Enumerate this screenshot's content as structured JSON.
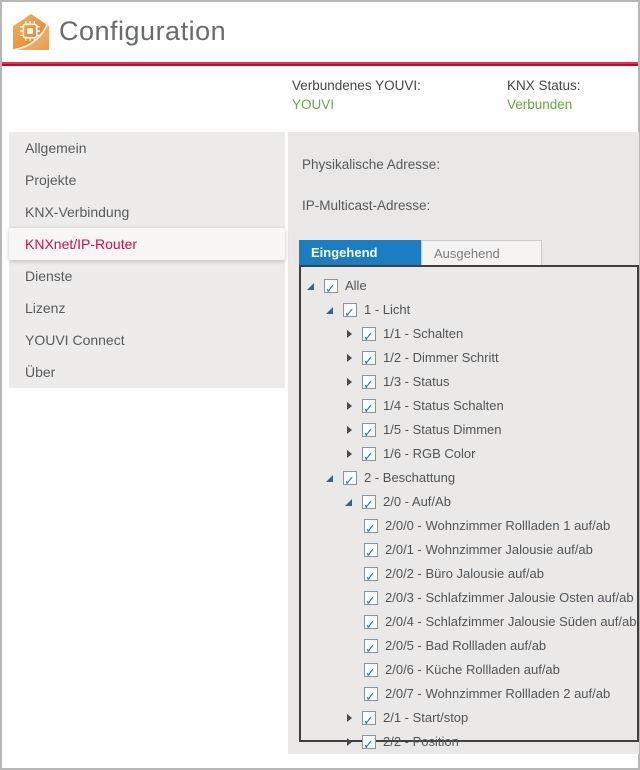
{
  "header": {
    "title": "Configuration",
    "logo_icon": "youvi-house-chip-logo"
  },
  "sidebar": {
    "items": [
      {
        "label": "Allgemein",
        "selected": false
      },
      {
        "label": "Projekte",
        "selected": false
      },
      {
        "label": "KNX-Verbindung",
        "selected": false
      },
      {
        "label": "KNXnet/IP-Router",
        "selected": true
      },
      {
        "label": "Dienste",
        "selected": false
      },
      {
        "label": "Lizenz",
        "selected": false
      },
      {
        "label": "YOUVI Connect",
        "selected": false
      },
      {
        "label": "Über",
        "selected": false
      }
    ]
  },
  "status": {
    "connected_youvi_label": "Verbundenes YOUVI:",
    "connected_youvi_value": "YOUVI",
    "knx_status_label": "KNX Status:",
    "knx_status_value": "Verbunden"
  },
  "fields": {
    "physical_address_label": "Physikalische Adresse:",
    "ip_multicast_label": "IP-Multicast-Adresse:"
  },
  "tabs": [
    {
      "label": "Eingehend",
      "active": true
    },
    {
      "label": "Ausgehend",
      "active": false
    }
  ],
  "tree": {
    "items": [
      {
        "label": "Alle",
        "level": 0,
        "state": "expanded",
        "checked": true
      },
      {
        "label": "1 - Licht",
        "level": 1,
        "state": "expanded",
        "checked": true
      },
      {
        "label": "1/1 - Schalten",
        "level": 2,
        "state": "collapsed",
        "checked": true
      },
      {
        "label": "1/2 - Dimmer Schritt",
        "level": 2,
        "state": "collapsed",
        "checked": true
      },
      {
        "label": "1/3 - Status",
        "level": 2,
        "state": "collapsed",
        "checked": true
      },
      {
        "label": "1/4 - Status Schalten",
        "level": 2,
        "state": "collapsed",
        "checked": true
      },
      {
        "label": "1/5 - Status Dimmen",
        "level": 2,
        "state": "collapsed",
        "checked": true
      },
      {
        "label": "1/6 - RGB Color",
        "level": 2,
        "state": "collapsed",
        "checked": true
      },
      {
        "label": "2 - Beschattung",
        "level": 1,
        "state": "expanded",
        "checked": true
      },
      {
        "label": "2/0 - Auf/Ab",
        "level": 2,
        "state": "expanded",
        "checked": true
      },
      {
        "label": "2/0/0 - Wohnzimmer Rollladen 1 auf/ab",
        "level": 3,
        "state": "leaf",
        "checked": true
      },
      {
        "label": "2/0/1 - Wohnzimmer Jalousie auf/ab",
        "level": 3,
        "state": "leaf",
        "checked": true
      },
      {
        "label": "2/0/2 - Büro Jalousie auf/ab",
        "level": 3,
        "state": "leaf",
        "checked": true
      },
      {
        "label": "2/0/3 - Schlafzimmer Jalousie Osten auf/ab",
        "level": 3,
        "state": "leaf",
        "checked": true
      },
      {
        "label": "2/0/4 - Schlafzimmer Jalousie Süden auf/ab",
        "level": 3,
        "state": "leaf",
        "checked": true
      },
      {
        "label": "2/0/5 - Bad Rollladen auf/ab",
        "level": 3,
        "state": "leaf",
        "checked": true
      },
      {
        "label": "2/0/6 - Küche Rollladen auf/ab",
        "level": 3,
        "state": "leaf",
        "checked": true
      },
      {
        "label": "2/0/7 - Wohnzimmer Rollladen 2 auf/ab",
        "level": 3,
        "state": "leaf",
        "checked": true
      },
      {
        "label": "2/1 - Start/stop",
        "level": 2,
        "state": "collapsed",
        "checked": true
      },
      {
        "label": "2/2 - Position",
        "level": 2,
        "state": "collapsed",
        "checked": true
      }
    ]
  },
  "colors": {
    "accent_blue": "#1b7ec2",
    "accent_green": "#64a844",
    "accent_red": "#cb1244",
    "line_red_top": "#e8304f",
    "line_red_bottom": "#b20e35"
  }
}
